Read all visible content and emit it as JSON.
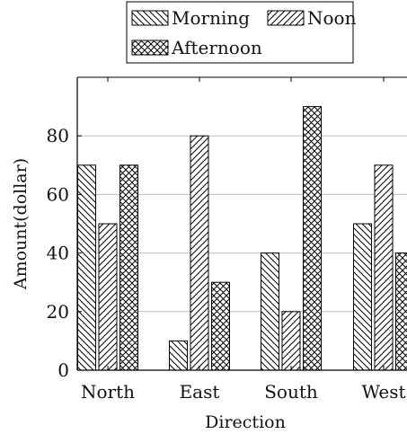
{
  "chart_data": {
    "type": "bar",
    "xlabel": "Direction",
    "ylabel": "Amount(dollar)",
    "categories": [
      "North",
      "East",
      "South",
      "West"
    ],
    "series": [
      {
        "name": "Morning",
        "values": [
          70,
          10,
          40,
          50
        ],
        "pattern": "diagonal-down"
      },
      {
        "name": "Noon",
        "values": [
          50,
          80,
          20,
          70
        ],
        "pattern": "diagonal-up"
      },
      {
        "name": "Afternoon",
        "values": [
          70,
          30,
          90,
          40
        ],
        "pattern": "crosshatch"
      }
    ],
    "yticks": [
      0,
      20,
      40,
      60,
      80
    ],
    "ylim": [
      0,
      100
    ],
    "grid": true,
    "legend": "top-center"
  }
}
